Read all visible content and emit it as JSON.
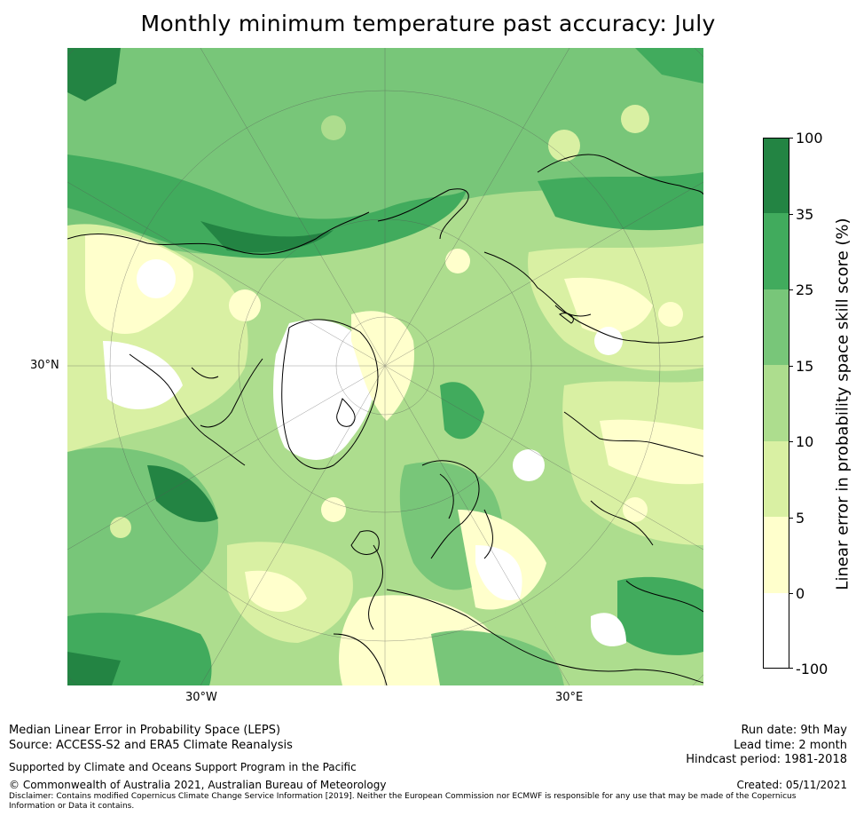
{
  "title": "Monthly minimum temperature past accuracy: July",
  "map": {
    "projection": "north-polar-stereographic",
    "tick_labels": {
      "lat_left": "30°N",
      "lon_bottom_left": "30°W",
      "lon_bottom_right": "30°E"
    }
  },
  "colorbar": {
    "label": "Linear error in probability space skill score (%)",
    "ticks": [
      "100",
      "35",
      "25",
      "15",
      "10",
      "5",
      "0",
      "-100"
    ],
    "bins": [
      {
        "range": "-100 to 0",
        "color": "#ffffff"
      },
      {
        "range": "0 to 5",
        "color": "#ffffcc"
      },
      {
        "range": "5 to 10",
        "color": "#d9f0a3"
      },
      {
        "range": "10 to 15",
        "color": "#addd8e"
      },
      {
        "range": "15 to 25",
        "color": "#78c679"
      },
      {
        "range": "25 to 35",
        "color": "#41ab5d"
      },
      {
        "range": "35 to 100",
        "color": "#238443"
      }
    ]
  },
  "footer": {
    "line1": "Median Linear Error in Probability Space (LEPS)",
    "line2": "Source: ACCESS-S2 and ERA5 Climate Reanalysis",
    "support": "Supported by Climate and Oceans Support Program in the Pacific",
    "copyright": "© Commonwealth of Australia 2021, Australian Bureau of Meteorology",
    "disclaimer": "Disclaimer: Contains modified Copernicus Climate Change Service Information [2019]. Neither the European Commission nor ECMWF is responsible for any use that may be made of the Copernicus Information or Data it contains.",
    "run_date": "Run date: 9th May",
    "lead_time": "Lead time: 2 month",
    "hindcast": "Hindcast period: 1981-2018",
    "created": "Created: 05/11/2021"
  }
}
